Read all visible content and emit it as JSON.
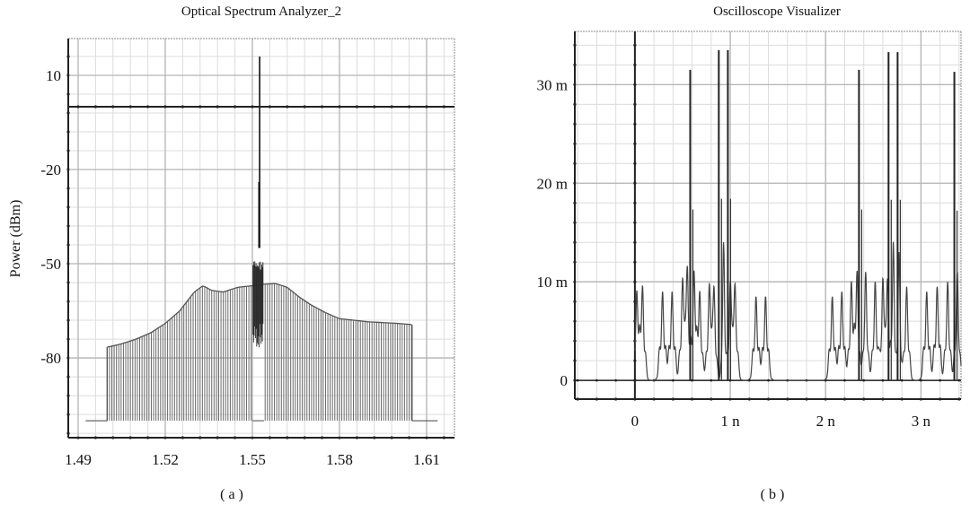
{
  "chart_data": [
    {
      "type": "line",
      "title": "Optical Spectrum Analyzer_2",
      "caption": "( a )",
      "xlabel": "",
      "ylabel": "Power (dBm)",
      "xlim": [
        1.4866,
        1.6196
      ],
      "ylim": [
        -105.4,
        21.7
      ],
      "xticks": [
        1.49,
        1.52,
        1.55,
        1.58,
        1.61
      ],
      "xtick_labels": [
        "1.49",
        "1.52",
        "1.55",
        "1.58",
        "1.61"
      ],
      "yticks": [
        10,
        -20,
        -50,
        -80
      ],
      "ytick_labels": [
        "10",
        "-20",
        "-50",
        "-80"
      ],
      "x_minor_step": 0.006,
      "y_minor_step": 6,
      "grid": true,
      "marker_line_dbm": 0,
      "noise_floor_dbm": -100,
      "floor_range": [
        1.4926,
        1.6138
      ],
      "channel_range": [
        1.5,
        1.605
      ],
      "channel_spacing": 0.0008,
      "center_gap": [
        1.55,
        1.554
      ],
      "envelope": {
        "x": [
          1.5,
          1.505,
          1.51,
          1.515,
          1.52,
          1.525,
          1.53,
          1.533,
          1.536,
          1.54,
          1.545,
          1.55,
          1.554,
          1.558,
          1.562,
          1.566,
          1.57,
          1.575,
          1.58,
          1.59,
          1.6,
          1.605
        ],
        "y": [
          -76.6,
          -75.5,
          -74,
          -72,
          -69,
          -65,
          -59,
          -57,
          -58.5,
          -59,
          -57.5,
          -57,
          -56.5,
          -56.3,
          -57.5,
          -60.5,
          -63,
          -65.5,
          -67.5,
          -68.5,
          -69,
          -69.4
        ]
      },
      "center_signal": {
        "band": [
          1.5502,
          1.5538
        ],
        "band_top_dbm": -49,
        "band_bottom_dbm": -77,
        "peak_x": 1.5525,
        "peak_dbm": 16,
        "secondary_peak_dbm": -24
      }
    },
    {
      "type": "line",
      "title": "Oscilloscope Visualizer",
      "caption": "( b )",
      "xlabel": "",
      "ylabel": "",
      "xlim": [
        -0.63,
        3.42
      ],
      "ylim": [
        -1.9,
        35.4
      ],
      "x_unit": "ns",
      "y_unit": "m (a.u.)",
      "xticks": [
        0,
        1,
        2,
        3
      ],
      "xtick_labels": [
        "0",
        "1 n",
        "2 n",
        "3 n"
      ],
      "yticks": [
        0,
        10,
        20,
        30
      ],
      "ytick_labels": [
        "0",
        "10 m",
        "20 m",
        "30 m"
      ],
      "x_minor_step": 0.2,
      "y_minor_step": 2,
      "grid": true,
      "signal_start_ns": 0,
      "pulses": [
        {
          "t": 0.02,
          "a": 9,
          "w": 0.022
        },
        {
          "t": 0.08,
          "a": 9.5,
          "w": 0.022
        },
        {
          "t": 0.29,
          "a": 9,
          "w": 0.025
        },
        {
          "t": 0.39,
          "a": 9,
          "w": 0.025
        },
        {
          "t": 0.5,
          "a": 10,
          "w": 0.022
        },
        {
          "t": 0.55,
          "a": 11,
          "w": 0.02
        },
        {
          "t": 0.62,
          "a": 11,
          "w": 0.02
        },
        {
          "t": 0.68,
          "a": 9,
          "w": 0.022
        },
        {
          "t": 0.78,
          "a": 9.5,
          "w": 0.022
        },
        {
          "t": 0.83,
          "a": 9,
          "w": 0.02
        },
        {
          "t": 0.93,
          "a": 14,
          "w": 0.015
        },
        {
          "t": 1.0,
          "a": 9.5,
          "w": 0.02
        },
        {
          "t": 1.05,
          "a": 9.5,
          "w": 0.022
        },
        {
          "t": 1.27,
          "a": 8.5,
          "w": 0.025
        },
        {
          "t": 1.37,
          "a": 8.5,
          "w": 0.025
        },
        {
          "t": 2.07,
          "a": 8.5,
          "w": 0.025
        },
        {
          "t": 2.17,
          "a": 9,
          "w": 0.025
        },
        {
          "t": 2.27,
          "a": 10,
          "w": 0.022
        },
        {
          "t": 2.33,
          "a": 11,
          "w": 0.02
        },
        {
          "t": 2.42,
          "a": 11,
          "w": 0.02
        },
        {
          "t": 2.52,
          "a": 10,
          "w": 0.022
        },
        {
          "t": 2.6,
          "a": 10,
          "w": 0.02
        },
        {
          "t": 2.65,
          "a": 10,
          "w": 0.02
        },
        {
          "t": 2.71,
          "a": 14,
          "w": 0.015
        },
        {
          "t": 2.77,
          "a": 13,
          "w": 0.015
        },
        {
          "t": 2.85,
          "a": 9.5,
          "w": 0.022
        },
        {
          "t": 3.06,
          "a": 9,
          "w": 0.025
        },
        {
          "t": 3.17,
          "a": 9.5,
          "w": 0.025
        },
        {
          "t": 3.28,
          "a": 10,
          "w": 0.022
        },
        {
          "t": 3.38,
          "a": 11,
          "w": 0.02
        }
      ],
      "spikes": [
        {
          "t": 0.58,
          "a": 31.5
        },
        {
          "t": 0.88,
          "a": 33.5
        },
        {
          "t": 0.975,
          "a": 33.5
        },
        {
          "t": 2.35,
          "a": 31.5
        },
        {
          "t": 2.66,
          "a": 33.3
        },
        {
          "t": 2.755,
          "a": 33.3
        },
        {
          "t": 3.35,
          "a": 31.3
        }
      ]
    }
  ]
}
